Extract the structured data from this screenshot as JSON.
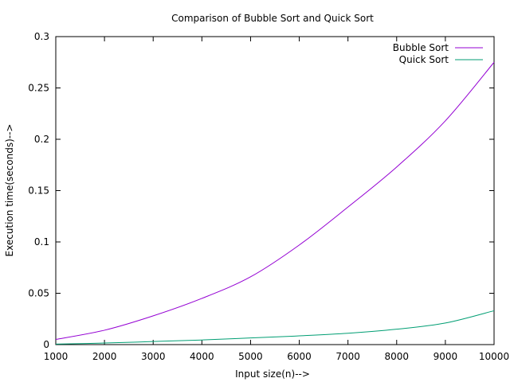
{
  "chart_data": {
    "type": "line",
    "title": "Comparison of Bubble Sort and Quick Sort",
    "xlabel": "Input size(n)-->",
    "ylabel": "Execution time(seconds)-->",
    "xlim": [
      1000,
      10000
    ],
    "ylim": [
      0,
      0.3
    ],
    "x_ticks": [
      "1000",
      "2000",
      "3000",
      "4000",
      "5000",
      "6000",
      "7000",
      "8000",
      "9000",
      "10000"
    ],
    "y_ticks": [
      "0",
      "0.05",
      "0.1",
      "0.15",
      "0.2",
      "0.25",
      "0.3"
    ],
    "grid": false,
    "legend_position": "top-right",
    "x": [
      1000,
      2000,
      3000,
      4000,
      5000,
      6000,
      7000,
      8000,
      9000,
      10000
    ],
    "series": [
      {
        "name": "Bubble Sort",
        "color": "#9400d3",
        "values": [
          0.005,
          0.014,
          0.028,
          0.045,
          0.066,
          0.097,
          0.134,
          0.173,
          0.218,
          0.275
        ]
      },
      {
        "name": "Quick Sort",
        "color": "#009e73",
        "values": [
          0.0005,
          0.0015,
          0.003,
          0.0045,
          0.0065,
          0.0085,
          0.011,
          0.015,
          0.021,
          0.033
        ]
      }
    ]
  }
}
